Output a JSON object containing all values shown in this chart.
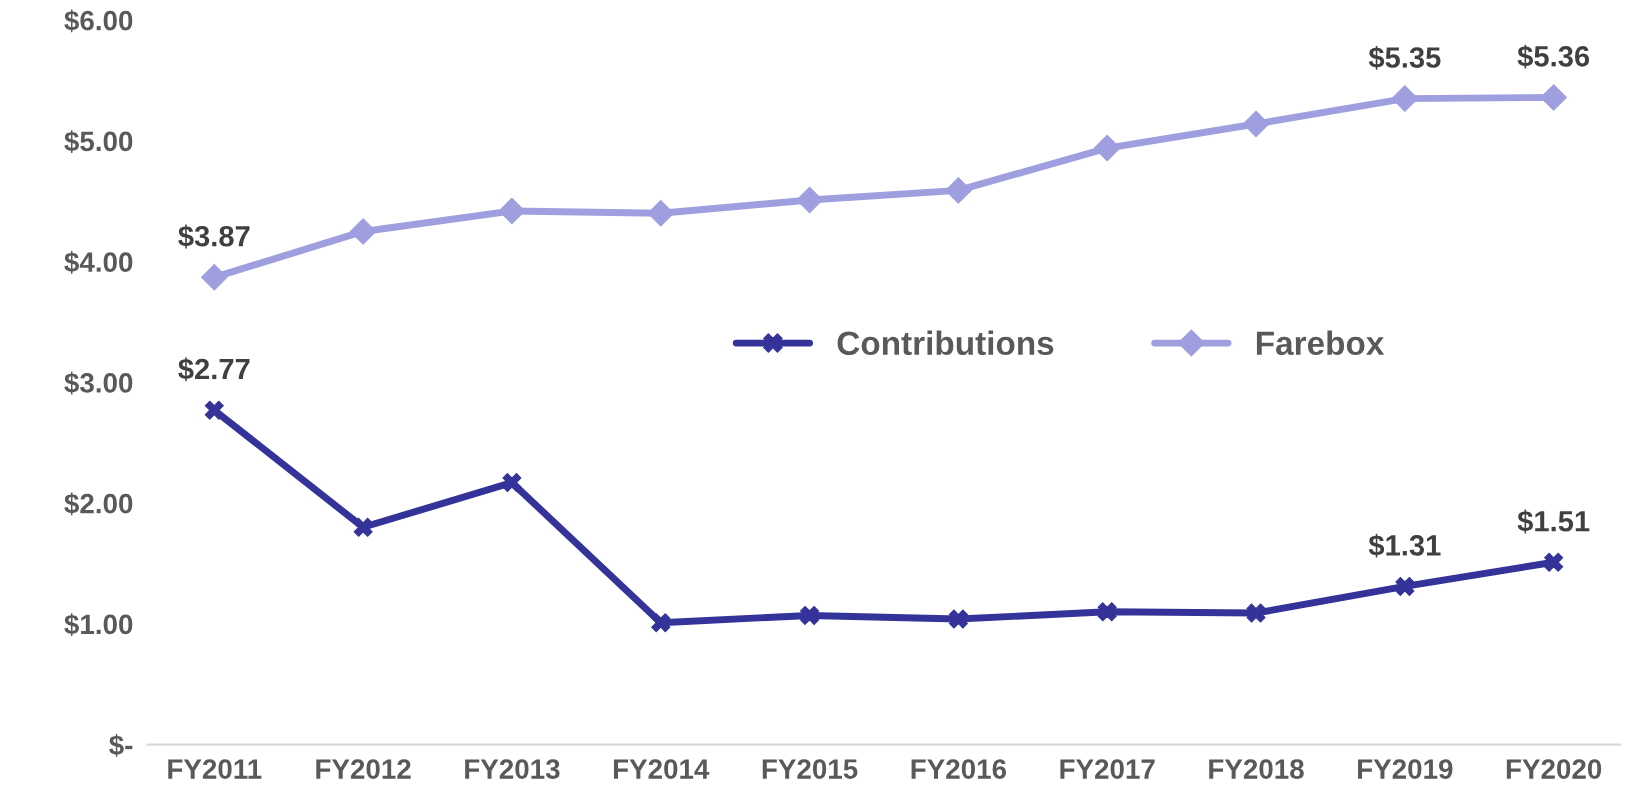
{
  "chart_data": {
    "type": "line",
    "categories": [
      "FY2011",
      "FY2012",
      "FY2013",
      "FY2014",
      "FY2015",
      "FY2016",
      "FY2017",
      "FY2018",
      "FY2019",
      "FY2020"
    ],
    "series": [
      {
        "name": "Contributions",
        "color": "#333399",
        "marker": "cross",
        "values": [
          2.77,
          1.8,
          2.17,
          1.01,
          1.07,
          1.04,
          1.1,
          1.09,
          1.31,
          1.51
        ],
        "value_labels": [
          "$2.77",
          null,
          null,
          null,
          null,
          null,
          null,
          null,
          "$1.31",
          "$1.51"
        ]
      },
      {
        "name": "Farebox",
        "color": "#9f9fdf",
        "marker": "diamond",
        "values": [
          3.87,
          4.25,
          4.42,
          4.4,
          4.51,
          4.59,
          4.94,
          5.14,
          5.35,
          5.36
        ],
        "value_labels": [
          "$3.87",
          null,
          null,
          null,
          null,
          null,
          null,
          null,
          "$5.35",
          "$5.36"
        ]
      }
    ],
    "ylim": [
      0,
      6
    ],
    "yticks": [
      {
        "value": 0,
        "label": "$-"
      },
      {
        "value": 1,
        "label": "$1.00"
      },
      {
        "value": 2,
        "label": "$2.00"
      },
      {
        "value": 3,
        "label": "$3.00"
      },
      {
        "value": 4,
        "label": "$4.00"
      },
      {
        "value": 5,
        "label": "$5.00"
      },
      {
        "value": 6,
        "label": "$6.00"
      }
    ],
    "grid": false,
    "legend": "center right",
    "line_style": "solid"
  }
}
